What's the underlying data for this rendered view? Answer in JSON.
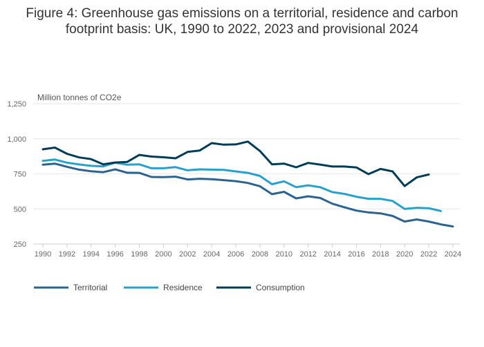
{
  "chart_data": {
    "type": "line",
    "title_lines": [
      "Figure 4: Greenhouse gas emissions on a territorial, residence and carbon",
      "footprint basis: UK, 1990 to 2022, 2023 and provisional 2024"
    ],
    "ylabel": "Million tonnes of CO2e",
    "ylim": [
      250,
      1250
    ],
    "yticks": [
      250,
      500,
      750,
      1000,
      1250
    ],
    "ytick_labels": [
      "250",
      "500",
      "750",
      "1,000",
      "1,250"
    ],
    "xlim": [
      1990,
      2024
    ],
    "xticks": [
      1990,
      1992,
      1994,
      1996,
      1998,
      2000,
      2002,
      2004,
      2006,
      2008,
      2010,
      2012,
      2014,
      2016,
      2018,
      2020,
      2022,
      2024
    ],
    "grid": true,
    "legend_position": "bottom",
    "series": [
      {
        "name": "Territorial",
        "color": "#2b6390",
        "x": [
          1990,
          1991,
          1992,
          1993,
          1994,
          1995,
          1996,
          1997,
          1998,
          1999,
          2000,
          2001,
          2002,
          2003,
          2004,
          2005,
          2006,
          2007,
          2008,
          2009,
          2010,
          2011,
          2012,
          2013,
          2014,
          2015,
          2016,
          2017,
          2018,
          2019,
          2020,
          2021,
          2022,
          2023,
          2024
        ],
        "values": [
          815,
          823,
          800,
          780,
          768,
          762,
          782,
          758,
          757,
          728,
          727,
          730,
          710,
          715,
          712,
          705,
          698,
          685,
          662,
          605,
          622,
          575,
          590,
          578,
          537,
          512,
          488,
          475,
          468,
          450,
          410,
          425,
          410,
          390,
          375
        ]
      },
      {
        "name": "Residence",
        "color": "#27a0cc",
        "x": [
          1990,
          1991,
          1992,
          1993,
          1994,
          1995,
          1996,
          1997,
          1998,
          1999,
          2000,
          2001,
          2002,
          2003,
          2004,
          2005,
          2006,
          2007,
          2008,
          2009,
          2010,
          2011,
          2012,
          2013,
          2014,
          2015,
          2016,
          2017,
          2018,
          2019,
          2020,
          2021,
          2022,
          2023
        ],
        "values": [
          842,
          852,
          830,
          817,
          807,
          803,
          830,
          815,
          818,
          790,
          790,
          798,
          775,
          782,
          780,
          778,
          767,
          757,
          735,
          676,
          697,
          655,
          668,
          655,
          620,
          607,
          587,
          572,
          572,
          557,
          500,
          508,
          505,
          485
        ]
      },
      {
        "name": "Consumption",
        "color": "#003c57",
        "x": [
          1990,
          1991,
          1992,
          1993,
          1994,
          1995,
          1996,
          1997,
          1998,
          1999,
          2000,
          2001,
          2002,
          2003,
          2004,
          2005,
          2006,
          2007,
          2008,
          2009,
          2010,
          2011,
          2012,
          2013,
          2014,
          2015,
          2016,
          2017,
          2018,
          2019,
          2020,
          2021,
          2022
        ],
        "values": [
          925,
          937,
          893,
          867,
          855,
          818,
          831,
          835,
          885,
          873,
          868,
          861,
          906,
          916,
          969,
          958,
          960,
          980,
          913,
          818,
          823,
          797,
          828,
          816,
          802,
          802,
          796,
          748,
          785,
          767,
          663,
          725,
          745
        ]
      }
    ]
  }
}
